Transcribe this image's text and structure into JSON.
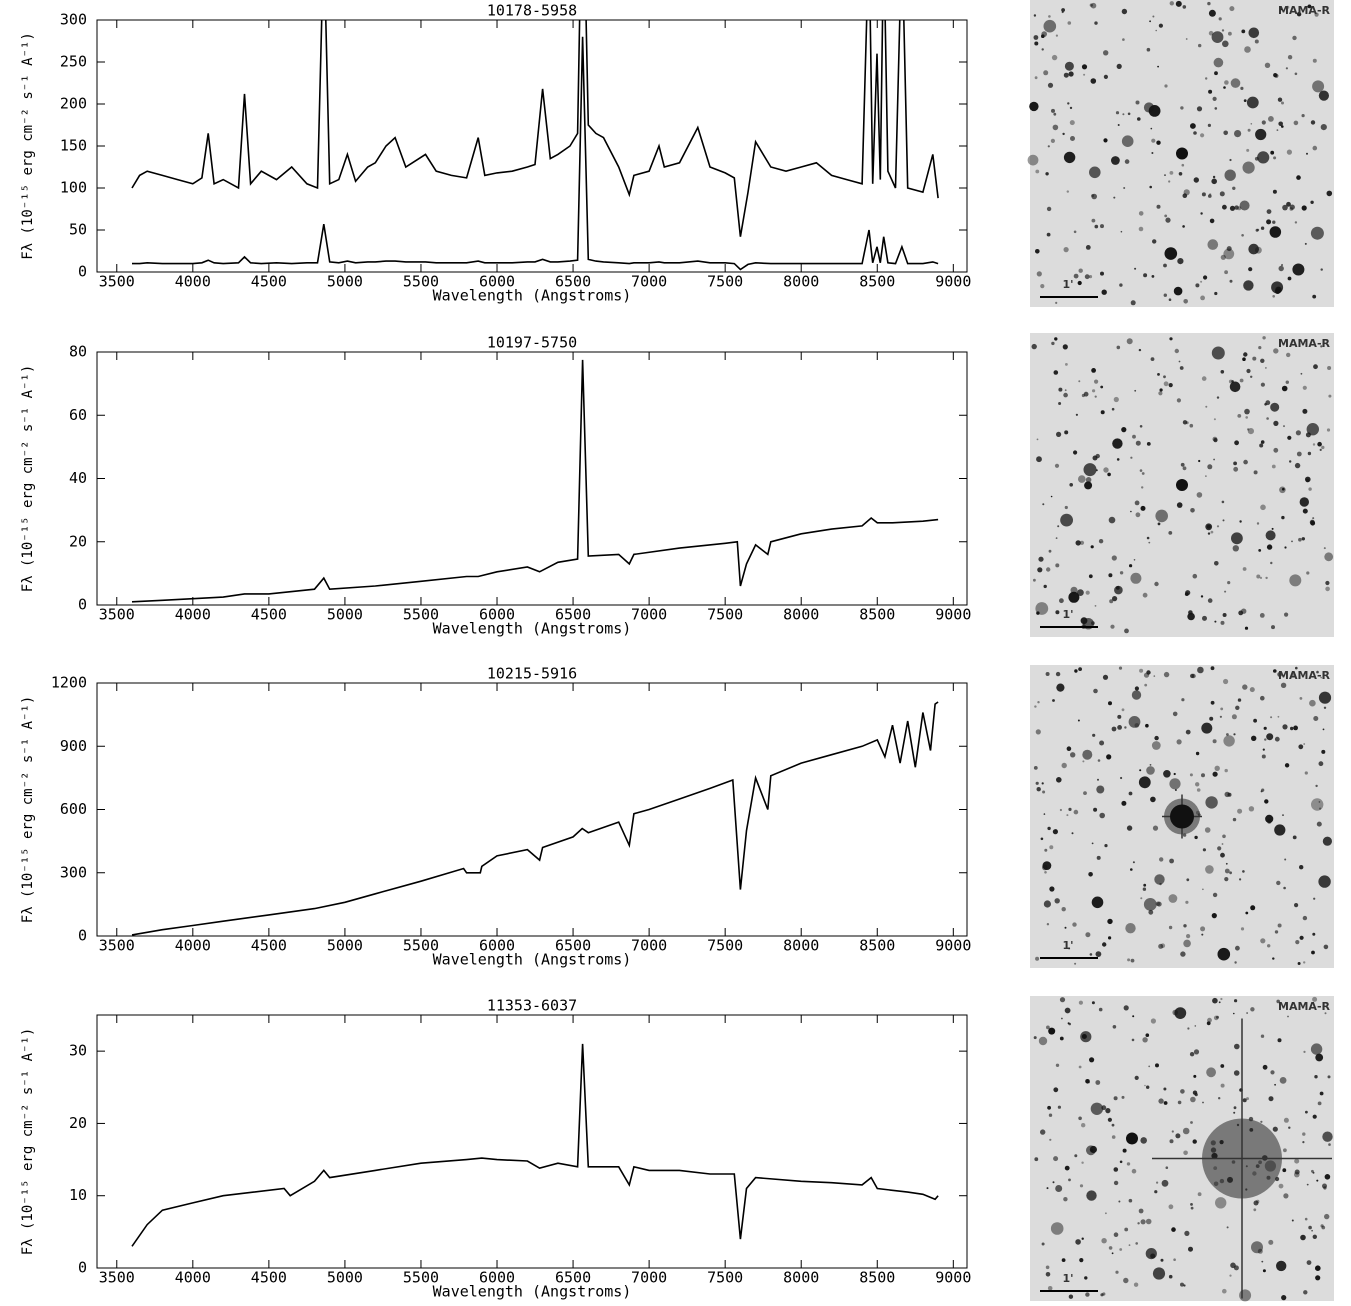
{
  "chart_data": [
    {
      "type": "line",
      "title": "10178-5958",
      "x_label": "Wavelength (Angstroms)",
      "y_label": "Fλ (10⁻¹⁵ erg cm⁻² s⁻¹ A⁻¹)",
      "xlim": [
        3370,
        9090
      ],
      "xticks": [
        3500,
        4000,
        4500,
        5000,
        5500,
        6000,
        6500,
        7000,
        7500,
        8000,
        8500,
        9000
      ],
      "ylim": [
        0,
        300
      ],
      "yticks": [
        0,
        50,
        100,
        150,
        200,
        250,
        300
      ],
      "x": [
        3600,
        3650,
        3700,
        3800,
        3900,
        4000,
        4060,
        4101,
        4140,
        4200,
        4300,
        4340,
        4380,
        4450,
        4550,
        4650,
        4750,
        4820,
        4861,
        4900,
        4960,
        5016,
        5070,
        5150,
        5200,
        5270,
        5330,
        5400,
        5530,
        5600,
        5700,
        5800,
        5876,
        5920,
        6000,
        6100,
        6200,
        6250,
        6300,
        6350,
        6400,
        6480,
        6530,
        6563,
        6600,
        6650,
        6700,
        6800,
        6870,
        6900,
        7000,
        7065,
        7100,
        7200,
        7320,
        7400,
        7500,
        7560,
        7600,
        7650,
        7700,
        7800,
        7900,
        8000,
        8100,
        8200,
        8300,
        8400,
        8446,
        8470,
        8498,
        8520,
        8542,
        8570,
        8620,
        8662,
        8700,
        8800,
        8865,
        8900
      ],
      "series": [
        {
          "color": "#000000",
          "values": [
            100,
            115,
            120,
            115,
            110,
            105,
            112,
            165,
            105,
            110,
            100,
            212,
            105,
            120,
            110,
            125,
            105,
            100,
            400,
            105,
            110,
            140,
            108,
            125,
            130,
            150,
            160,
            125,
            140,
            120,
            115,
            112,
            160,
            115,
            118,
            120,
            125,
            128,
            218,
            135,
            140,
            150,
            165,
            500,
            175,
            165,
            160,
            125,
            92,
            115,
            120,
            150,
            125,
            130,
            172,
            125,
            118,
            112,
            42,
            95,
            155,
            125,
            120,
            125,
            130,
            115,
            110,
            105,
            400,
            105,
            260,
            110,
            400,
            120,
            100,
            400,
            100,
            95,
            140,
            88
          ]
        },
        {
          "color": "#000000",
          "values": [
            10,
            10,
            11,
            10,
            10,
            10,
            11,
            14,
            11,
            10,
            11,
            18,
            11,
            10,
            11,
            10,
            11,
            11,
            57,
            12,
            11,
            13,
            11,
            12,
            12,
            13,
            13,
            12,
            12,
            11,
            11,
            11,
            13,
            11,
            11,
            11,
            12,
            12,
            15,
            12,
            12,
            13,
            14,
            280,
            15,
            13,
            12,
            11,
            10,
            11,
            11,
            12,
            11,
            11,
            13,
            11,
            11,
            10,
            3,
            9,
            11,
            10,
            10,
            10,
            10,
            10,
            10,
            10,
            50,
            11,
            30,
            11,
            42,
            11,
            10,
            30,
            10,
            10,
            12,
            10
          ]
        }
      ]
    },
    {
      "type": "line",
      "title": "10197-5750",
      "x_label": "Wavelength (Angstroms)",
      "y_label": "Fλ (10⁻¹⁵ erg cm⁻² s⁻¹ A⁻¹)",
      "xlim": [
        3370,
        9090
      ],
      "xticks": [
        3500,
        4000,
        4500,
        5000,
        5500,
        6000,
        6500,
        7000,
        7500,
        8000,
        8500,
        9000
      ],
      "ylim": [
        0,
        80
      ],
      "yticks": [
        0,
        20,
        40,
        60,
        80
      ],
      "x": [
        3600,
        3800,
        4000,
        4200,
        4340,
        4500,
        4800,
        4861,
        4900,
        5200,
        5500,
        5800,
        5876,
        6000,
        6200,
        6280,
        6400,
        6530,
        6563,
        6600,
        6800,
        6870,
        6900,
        7200,
        7500,
        7580,
        7600,
        7640,
        7700,
        7780,
        7800,
        8000,
        8200,
        8400,
        8460,
        8500,
        8600,
        8800,
        8900
      ],
      "series": [
        {
          "color": "#000000",
          "values": [
            1,
            1.5,
            2,
            2.5,
            3.5,
            3.5,
            5,
            8.5,
            5,
            6,
            7.5,
            9,
            9,
            10.5,
            12,
            10.5,
            13.5,
            14.5,
            77.5,
            15.5,
            16,
            13,
            16,
            18,
            19.5,
            20,
            6,
            13,
            19,
            16,
            20,
            22.5,
            24,
            25,
            27.5,
            26,
            26,
            26.5,
            27
          ]
        }
      ]
    },
    {
      "type": "line",
      "title": "10215-5916",
      "x_label": "Wavelength (Angstroms)",
      "y_label": "Fλ (10⁻¹⁵ erg cm⁻² s⁻¹ A⁻¹)",
      "xlim": [
        3370,
        9090
      ],
      "xticks": [
        3500,
        4000,
        4500,
        5000,
        5500,
        6000,
        6500,
        7000,
        7500,
        8000,
        8500,
        9000
      ],
      "ylim": [
        0,
        1200
      ],
      "yticks": [
        0,
        300,
        600,
        900,
        1200
      ],
      "x": [
        3600,
        3800,
        4000,
        4200,
        4500,
        4800,
        5000,
        5200,
        5500,
        5780,
        5800,
        5890,
        5900,
        6000,
        6200,
        6280,
        6300,
        6500,
        6560,
        6600,
        6800,
        6870,
        6900,
        7000,
        7200,
        7400,
        7550,
        7600,
        7640,
        7700,
        7780,
        7800,
        8000,
        8200,
        8400,
        8500,
        8550,
        8600,
        8650,
        8700,
        8750,
        8800,
        8850,
        8880,
        8900
      ],
      "series": [
        {
          "color": "#000000",
          "values": [
            5,
            30,
            50,
            70,
            100,
            130,
            160,
            200,
            260,
            320,
            300,
            300,
            330,
            380,
            410,
            360,
            420,
            470,
            510,
            490,
            540,
            430,
            580,
            600,
            650,
            700,
            740,
            220,
            500,
            750,
            600,
            760,
            820,
            860,
            900,
            930,
            850,
            1000,
            820,
            1020,
            800,
            1060,
            880,
            1100,
            1110
          ]
        }
      ]
    },
    {
      "type": "line",
      "title": "11353-6037",
      "x_label": "Wavelength (Angstroms)",
      "y_label": "Fλ (10⁻¹⁵ erg cm⁻² s⁻¹ A⁻¹)",
      "xlim": [
        3370,
        9090
      ],
      "xticks": [
        3500,
        4000,
        4500,
        5000,
        5500,
        6000,
        6500,
        7000,
        7500,
        8000,
        8500,
        9000
      ],
      "ylim": [
        0,
        35
      ],
      "yticks": [
        0,
        10,
        20,
        30
      ],
      "x": [
        3600,
        3700,
        3800,
        4000,
        4200,
        4400,
        4600,
        4640,
        4800,
        4861,
        4900,
        5200,
        5500,
        5800,
        5900,
        6000,
        6200,
        6280,
        6400,
        6530,
        6563,
        6600,
        6800,
        6870,
        6900,
        7000,
        7200,
        7400,
        7560,
        7600,
        7640,
        7700,
        8000,
        8200,
        8400,
        8460,
        8500,
        8700,
        8800,
        8880,
        8900
      ],
      "series": [
        {
          "color": "#000000",
          "values": [
            3,
            6,
            8,
            9,
            10,
            10.5,
            11,
            10,
            12,
            13.5,
            12.5,
            13.5,
            14.5,
            15,
            15.2,
            15,
            14.8,
            13.8,
            14.5,
            14,
            31,
            14,
            14,
            11.5,
            14,
            13.5,
            13.5,
            13,
            13,
            4,
            11,
            12.5,
            12,
            11.8,
            11.5,
            12.5,
            11,
            10.5,
            10.2,
            9.5,
            10
          ]
        }
      ]
    }
  ],
  "images": [
    {
      "label": "MAMA-R",
      "scale": "1'"
    },
    {
      "label": "MAMA-R",
      "scale": "1'"
    },
    {
      "label": "MAMA-R",
      "scale": "1'"
    },
    {
      "label": "MAMA-R",
      "scale": "1'"
    }
  ]
}
